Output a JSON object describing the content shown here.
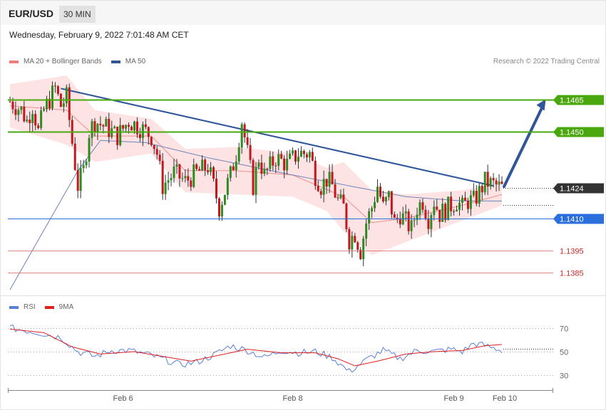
{
  "header": {
    "symbol": "EUR/USD",
    "timeframe": "30 MIN"
  },
  "datetime": "Wednesday, February 9, 2022 7:01:48 AM CET",
  "legend_main": [
    {
      "label": "MA 20 + Bollinger Bands",
      "color": "#f07b7b"
    },
    {
      "label": "MA 50",
      "color": "#2f5597"
    }
  ],
  "credit": "Research © 2022 Trading Central",
  "legend_rsi": [
    {
      "label": "RSI",
      "color": "#5b7fd9"
    },
    {
      "label": "9MA",
      "color": "#e02020"
    }
  ],
  "colors": {
    "up": "#2e8b22",
    "down": "#c0181c",
    "band": "#fde3e3",
    "resistance": "#4aa80e",
    "support": "#2b6fdc",
    "minor_support": "#d66060",
    "trendline": "#2e5698",
    "current_tag": "#333333"
  },
  "chart_data": {
    "type": "candlestick",
    "symbol": "EUR/USD",
    "timeframe": "30 MIN",
    "ylim": [
      1.1376,
      1.1478
    ],
    "x_ticks": [
      {
        "label": "Feb 6",
        "index": 40
      },
      {
        "label": "Feb 8",
        "index": 100
      },
      {
        "label": "Feb 9",
        "index": 157
      },
      {
        "label": "Feb 10",
        "index": 175
      }
    ],
    "n_slots": 195,
    "current_price": 1.1424,
    "levels": [
      {
        "label": "1.1465",
        "value": 1.1465,
        "kind": "resistance"
      },
      {
        "label": "1.1450",
        "value": 1.145,
        "kind": "resistance"
      },
      {
        "label": "1.1410",
        "value": 1.141,
        "kind": "support"
      },
      {
        "label": "1.1395",
        "value": 1.1395,
        "kind": "minor_support"
      },
      {
        "label": "1.1385",
        "value": 1.1385,
        "kind": "minor_support"
      }
    ],
    "candle_anchors": [
      [
        0,
        1.1464
      ],
      [
        4,
        1.146
      ],
      [
        6,
        1.1455
      ],
      [
        8,
        1.1462
      ],
      [
        10,
        1.145
      ],
      [
        12,
        1.146
      ],
      [
        14,
        1.1465
      ],
      [
        16,
        1.147
      ],
      [
        18,
        1.1462
      ],
      [
        20,
        1.1466
      ],
      [
        22,
        1.1445
      ],
      [
        24,
        1.1425
      ],
      [
        26,
        1.1432
      ],
      [
        28,
        1.145
      ],
      [
        30,
        1.1455
      ],
      [
        34,
        1.1452
      ],
      [
        38,
        1.1448
      ],
      [
        42,
        1.1455
      ],
      [
        46,
        1.1452
      ],
      [
        50,
        1.1448
      ],
      [
        52,
        1.144
      ],
      [
        54,
        1.1425
      ],
      [
        58,
        1.1431
      ],
      [
        62,
        1.1427
      ],
      [
        66,
        1.1431
      ],
      [
        70,
        1.1434
      ],
      [
        72,
        1.1425
      ],
      [
        74,
        1.1415
      ],
      [
        78,
        1.143
      ],
      [
        80,
        1.144
      ],
      [
        82,
        1.1455
      ],
      [
        84,
        1.144
      ],
      [
        86,
        1.1425
      ],
      [
        88,
        1.1438
      ],
      [
        90,
        1.143
      ],
      [
        94,
        1.1438
      ],
      [
        98,
        1.1435
      ],
      [
        102,
        1.144
      ],
      [
        106,
        1.144
      ],
      [
        108,
        1.143
      ],
      [
        110,
        1.1425
      ],
      [
        112,
        1.1428
      ],
      [
        114,
        1.1425
      ],
      [
        116,
        1.1418
      ],
      [
        118,
        1.1415
      ],
      [
        120,
        1.14
      ],
      [
        122,
        1.1403
      ],
      [
        124,
        1.1395
      ],
      [
        126,
        1.1408
      ],
      [
        128,
        1.1415
      ],
      [
        130,
        1.1425
      ],
      [
        132,
        1.1415
      ],
      [
        134,
        1.142
      ],
      [
        136,
        1.1408
      ],
      [
        138,
        1.1412
      ],
      [
        142,
        1.1405
      ],
      [
        144,
        1.1415
      ],
      [
        146,
        1.1418
      ],
      [
        148,
        1.141
      ],
      [
        150,
        1.1418
      ],
      [
        152,
        1.1412
      ],
      [
        156,
        1.1416
      ],
      [
        158,
        1.1418
      ],
      [
        160,
        1.1415
      ],
      [
        162,
        1.1418
      ],
      [
        164,
        1.1418
      ],
      [
        166,
        1.1422
      ],
      [
        168,
        1.1427
      ],
      [
        170,
        1.1426
      ],
      [
        172,
        1.1425
      ],
      [
        174,
        1.1424
      ]
    ],
    "ma50_anchors": [
      [
        24,
        1.1432
      ],
      [
        32,
        1.1446
      ],
      [
        48,
        1.1445
      ],
      [
        70,
        1.1438
      ],
      [
        100,
        1.143
      ],
      [
        120,
        1.1425
      ],
      [
        140,
        1.142
      ],
      [
        160,
        1.1418
      ],
      [
        174,
        1.1418
      ]
    ],
    "ma20_anchors": [
      [
        0,
        1.1462
      ],
      [
        20,
        1.146
      ],
      [
        30,
        1.1448
      ],
      [
        50,
        1.1448
      ],
      [
        62,
        1.1432
      ],
      [
        80,
        1.1432
      ],
      [
        100,
        1.143
      ],
      [
        118,
        1.142
      ],
      [
        128,
        1.1408
      ],
      [
        140,
        1.141
      ],
      [
        160,
        1.1416
      ],
      [
        174,
        1.1421
      ]
    ],
    "band_width_anchors": [
      [
        0,
        0.001
      ],
      [
        20,
        0.0016
      ],
      [
        30,
        0.0012
      ],
      [
        50,
        0.0008
      ],
      [
        62,
        0.001
      ],
      [
        80,
        0.0011
      ],
      [
        100,
        0.001
      ],
      [
        112,
        0.001
      ],
      [
        118,
        0.0016
      ],
      [
        128,
        0.0015
      ],
      [
        140,
        0.0011
      ],
      [
        160,
        0.0007
      ],
      [
        174,
        0.0005
      ]
    ],
    "trendline": [
      [
        18,
        1.147
      ],
      [
        171,
        1.1425
      ]
    ],
    "ma_longterm_start": [
      0,
      1.1377
    ],
    "projection": [
      [
        174,
        1.1425
      ],
      [
        188,
        1.1465
      ]
    ],
    "rsi": {
      "ylim": [
        20,
        80
      ],
      "levels": [
        {
          "label": "70",
          "value": 70
        },
        {
          "label": "50",
          "value": 50
        },
        {
          "label": "30",
          "value": 30
        }
      ],
      "anchors": [
        [
          0,
          70
        ],
        [
          10,
          66
        ],
        [
          18,
          62
        ],
        [
          24,
          50
        ],
        [
          30,
          46
        ],
        [
          36,
          51
        ],
        [
          42,
          51
        ],
        [
          48,
          48
        ],
        [
          54,
          44
        ],
        [
          60,
          39
        ],
        [
          66,
          41
        ],
        [
          72,
          47
        ],
        [
          78,
          55
        ],
        [
          84,
          51
        ],
        [
          90,
          45
        ],
        [
          96,
          51
        ],
        [
          102,
          49
        ],
        [
          108,
          50
        ],
        [
          114,
          45
        ],
        [
          120,
          33
        ],
        [
          126,
          43
        ],
        [
          132,
          51
        ],
        [
          138,
          44
        ],
        [
          144,
          51
        ],
        [
          150,
          50
        ],
        [
          156,
          52
        ],
        [
          160,
          50
        ],
        [
          164,
          57
        ],
        [
          168,
          55
        ],
        [
          174,
          51
        ]
      ],
      "ma_anchors": [
        [
          0,
          69
        ],
        [
          12,
          66
        ],
        [
          22,
          54
        ],
        [
          32,
          48
        ],
        [
          44,
          50
        ],
        [
          54,
          46
        ],
        [
          64,
          42
        ],
        [
          74,
          47
        ],
        [
          84,
          52
        ],
        [
          96,
          49
        ],
        [
          108,
          49
        ],
        [
          116,
          44
        ],
        [
          122,
          38
        ],
        [
          130,
          42
        ],
        [
          140,
          48
        ],
        [
          150,
          50
        ],
        [
          160,
          51
        ],
        [
          168,
          55
        ],
        [
          174,
          56
        ]
      ]
    }
  }
}
